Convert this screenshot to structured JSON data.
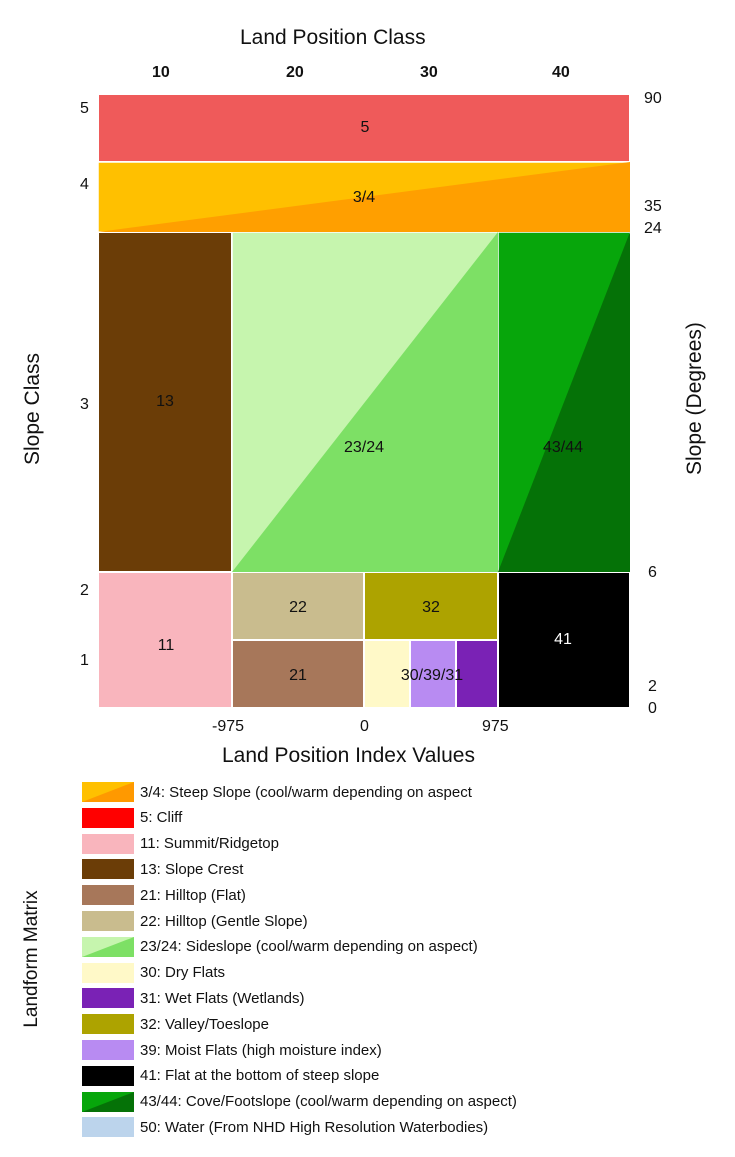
{
  "title": "Land Position Class",
  "top_ticks": [
    "10",
    "20",
    "30",
    "40"
  ],
  "left_axis_title": "Slope Class",
  "left_ticks": [
    "5",
    "4",
    "3",
    "2",
    "1"
  ],
  "right_axis_title": "Slope (Degrees)",
  "right_ticks": [
    "90",
    "35",
    "24",
    "6",
    "2",
    "0"
  ],
  "bottom_axis_title": "Land Position Index Values",
  "bottom_ticks": [
    "-975",
    "0",
    "975"
  ],
  "cells": {
    "c5": "5",
    "c34": "3/4",
    "c13": "13",
    "c2324": "23/24",
    "c4344": "43/44",
    "c11": "11",
    "c22": "22",
    "c32": "32",
    "c21": "21",
    "c303931": "30/39/31",
    "c41": "41"
  },
  "legend_title": "Landform Matrix",
  "legend": [
    {
      "text": "3/4: Steep Slope (cool/warm depending on aspect",
      "color": "#FFC000",
      "color2": "#FF9900"
    },
    {
      "text": "5: Cliff",
      "color": "#FF0000"
    },
    {
      "text": "11: Summit/Ridgetop",
      "color": "#F9B5BD"
    },
    {
      "text": "13: Slope Crest",
      "color": "#6B3D07"
    },
    {
      "text": "21: Hilltop (Flat)",
      "color": "#A7775A"
    },
    {
      "text": "22: Hilltop (Gentle Slope)",
      "color": "#C9BC8E"
    },
    {
      "text": "23/24: Sideslope (cool/warm depending on aspect)",
      "color": "#C6F5AE",
      "color2": "#7DE065"
    },
    {
      "text": "30: Dry Flats",
      "color": "#FFF9C8"
    },
    {
      "text": "31: Wet Flats (Wetlands)",
      "color": "#7A22B5"
    },
    {
      "text": "32: Valley/Toeslope",
      "color": "#ADA300"
    },
    {
      "text": "39: Moist Flats (high moisture index)",
      "color": "#B88BF2"
    },
    {
      "text": "41: Flat at the bottom of steep slope",
      "color": "#000000"
    },
    {
      "text": "43/44: Cove/Footslope (cool/warm depending on aspect)",
      "color": "#07A60B",
      "color2": "#057207"
    },
    {
      "text": "50: Water (From NHD High Resolution Waterbodies)",
      "color": "#BCD4EC"
    }
  ]
}
